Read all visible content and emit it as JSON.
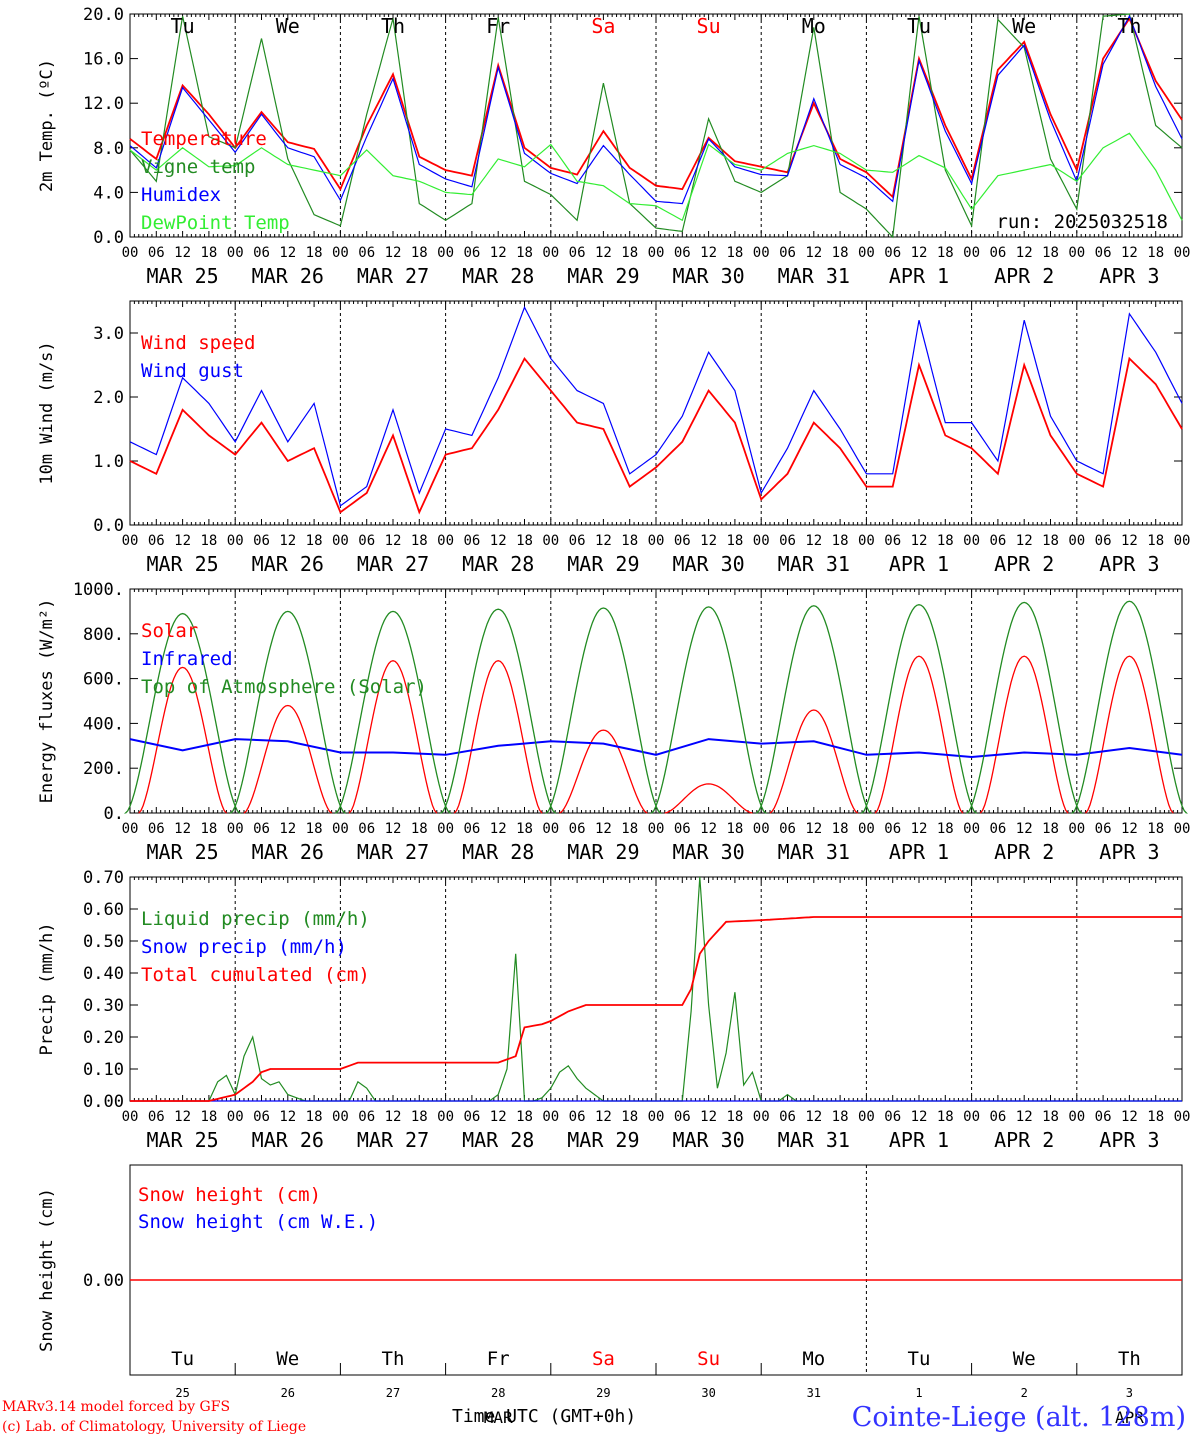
{
  "chart_data": [
    {
      "type": "line",
      "ylabel": "2m Temp. (ºC)",
      "ylim": [
        0,
        20
      ],
      "yticks": [
        "0.0",
        "4.0",
        "8.0",
        "12.0",
        "16.0",
        "20.0"
      ],
      "weekday_labels": [
        "Tu",
        "We",
        "Th",
        "Fr",
        "Sa",
        "Su",
        "Mo",
        "Tu",
        "We",
        "Th"
      ],
      "run_label": "run: 2025032518",
      "series": [
        {
          "name": "Temperature",
          "color": "#ff0000",
          "x": [
            0,
            6,
            12,
            18,
            24,
            30,
            36,
            42,
            48,
            54,
            60,
            66,
            72,
            78,
            84,
            90,
            96,
            102,
            108,
            114,
            120,
            126,
            132,
            138,
            144,
            150,
            156,
            162,
            168,
            174,
            180,
            186,
            192,
            198,
            204,
            210,
            216,
            222,
            228,
            234,
            240
          ],
          "values": [
            8.8,
            7.0,
            13.6,
            11.0,
            8.0,
            11.2,
            8.5,
            7.9,
            4.3,
            10.0,
            14.6,
            7.2,
            6.0,
            5.5,
            15.4,
            8.0,
            6.2,
            5.6,
            9.5,
            6.2,
            4.6,
            4.3,
            8.9,
            6.8,
            6.3,
            5.8,
            12.0,
            7.0,
            5.8,
            3.6,
            16.0,
            10.0,
            5.2,
            15.0,
            17.5,
            11.0,
            6.0,
            16.0,
            19.6,
            14.0,
            10.5
          ]
        },
        {
          "name": "Vigne temp",
          "color": "#228b22",
          "x": [
            0,
            6,
            12,
            18,
            24,
            30,
            36,
            42,
            48,
            54,
            60,
            66,
            72,
            78,
            84,
            90,
            96,
            102,
            108,
            114,
            120,
            126,
            132,
            138,
            144,
            150,
            156,
            162,
            168,
            174,
            180,
            186,
            192,
            198,
            204,
            210,
            216,
            222,
            228,
            234,
            240
          ],
          "values": [
            7.8,
            5.0,
            19.8,
            9.0,
            8.0,
            17.8,
            7.0,
            2.0,
            1.0,
            11.0,
            19.6,
            3.0,
            1.5,
            3.0,
            19.7,
            5.0,
            3.8,
            1.5,
            13.8,
            3.0,
            0.8,
            0.5,
            10.6,
            5.0,
            4.0,
            5.5,
            18.8,
            4.0,
            2.5,
            0.0,
            19.8,
            6.0,
            1.0,
            19.5,
            17.0,
            7.0,
            2.5,
            19.8,
            20.0,
            10.0,
            8.0
          ]
        },
        {
          "name": "Humidex",
          "color": "#0000ff",
          "x": [
            0,
            6,
            12,
            18,
            24,
            30,
            36,
            42,
            48,
            54,
            60,
            66,
            72,
            78,
            84,
            90,
            96,
            102,
            108,
            114,
            120,
            126,
            132,
            138,
            144,
            150,
            156,
            162,
            168,
            174,
            180,
            186,
            192,
            198,
            204,
            210,
            216,
            222,
            228,
            234,
            240
          ],
          "values": [
            8.2,
            6.2,
            13.4,
            10.5,
            7.6,
            11.0,
            8.0,
            7.2,
            3.3,
            9.0,
            14.2,
            6.5,
            5.2,
            4.5,
            15.2,
            7.5,
            5.7,
            4.8,
            8.2,
            5.6,
            3.2,
            3.0,
            8.8,
            6.3,
            5.6,
            5.5,
            12.4,
            6.5,
            5.3,
            3.2,
            15.8,
            9.5,
            4.8,
            14.5,
            17.2,
            10.5,
            5.0,
            15.5,
            19.8,
            13.5,
            8.8
          ]
        },
        {
          "name": "DewPoint Temp",
          "color": "#33ee33",
          "x": [
            0,
            6,
            12,
            18,
            24,
            30,
            36,
            42,
            48,
            54,
            60,
            66,
            72,
            78,
            84,
            90,
            96,
            102,
            108,
            114,
            120,
            126,
            132,
            138,
            144,
            150,
            156,
            162,
            168,
            174,
            180,
            186,
            192,
            198,
            204,
            210,
            216,
            222,
            228,
            234,
            240
          ],
          "values": [
            7.8,
            6.0,
            8.0,
            6.3,
            6.4,
            8.0,
            6.5,
            6.0,
            5.5,
            7.8,
            5.5,
            5.0,
            4.0,
            3.8,
            7.0,
            6.3,
            8.3,
            5.0,
            4.6,
            3.0,
            2.8,
            1.5,
            8.3,
            6.5,
            6.0,
            7.5,
            8.2,
            7.5,
            6.0,
            5.8,
            7.3,
            6.2,
            2.5,
            5.5,
            6.0,
            6.5,
            5.0,
            8.0,
            9.3,
            6.0,
            1.5
          ]
        }
      ]
    },
    {
      "type": "line",
      "ylabel": "10m Wind (m/s)",
      "ylim": [
        0,
        3.5
      ],
      "yticks": [
        "0.0",
        "1.0",
        "2.0",
        "3.0"
      ],
      "series": [
        {
          "name": "Wind speed",
          "color": "#ff0000",
          "x": [
            0,
            6,
            12,
            18,
            24,
            30,
            36,
            42,
            48,
            54,
            60,
            66,
            72,
            78,
            84,
            90,
            96,
            102,
            108,
            114,
            120,
            126,
            132,
            138,
            144,
            150,
            156,
            162,
            168,
            174,
            180,
            186,
            192,
            198,
            204,
            210,
            216,
            222,
            228,
            234,
            240
          ],
          "values": [
            1.0,
            0.8,
            1.8,
            1.4,
            1.1,
            1.6,
            1.0,
            1.2,
            0.2,
            0.5,
            1.4,
            0.2,
            1.1,
            1.2,
            1.8,
            2.6,
            2.1,
            1.6,
            1.5,
            0.6,
            0.9,
            1.3,
            2.1,
            1.6,
            0.4,
            0.8,
            1.6,
            1.2,
            0.6,
            0.6,
            2.5,
            1.4,
            1.2,
            0.8,
            2.5,
            1.4,
            0.8,
            0.6,
            2.6,
            2.2,
            1.5
          ]
        },
        {
          "name": "Wind gust",
          "color": "#0000ff",
          "x": [
            0,
            6,
            12,
            18,
            24,
            30,
            36,
            42,
            48,
            54,
            60,
            66,
            72,
            78,
            84,
            90,
            96,
            102,
            108,
            114,
            120,
            126,
            132,
            138,
            144,
            150,
            156,
            162,
            168,
            174,
            180,
            186,
            192,
            198,
            204,
            210,
            216,
            222,
            228,
            234,
            240
          ],
          "values": [
            1.3,
            1.1,
            2.3,
            1.9,
            1.3,
            2.1,
            1.3,
            1.9,
            0.3,
            0.6,
            1.8,
            0.5,
            1.5,
            1.4,
            2.3,
            3.4,
            2.6,
            2.1,
            1.9,
            0.8,
            1.1,
            1.7,
            2.7,
            2.1,
            0.5,
            1.2,
            2.1,
            1.5,
            0.8,
            0.8,
            3.2,
            1.6,
            1.6,
            1.0,
            3.2,
            1.7,
            1.0,
            0.8,
            3.3,
            2.7,
            1.9
          ]
        }
      ]
    },
    {
      "type": "line",
      "ylabel": "Energy fluxes (W/m²)",
      "ylim": [
        0,
        1000
      ],
      "yticks": [
        "0.",
        "200.",
        "400.",
        "600.",
        "800.",
        "1000."
      ],
      "series": [
        {
          "name": "Solar",
          "color": "#ff0000",
          "peaks": [
            650,
            480,
            680,
            680,
            370,
            130,
            460,
            700,
            700,
            700
          ]
        },
        {
          "name": "Infrared",
          "color": "#0000ff",
          "x": [
            0,
            12,
            24,
            36,
            48,
            60,
            72,
            84,
            96,
            108,
            120,
            132,
            144,
            156,
            168,
            180,
            192,
            204,
            216,
            228,
            240
          ],
          "values": [
            330,
            280,
            330,
            320,
            270,
            270,
            260,
            300,
            320,
            310,
            260,
            330,
            310,
            320,
            260,
            270,
            250,
            270,
            260,
            290,
            260
          ]
        },
        {
          "name": "Top of Atmosphere (Solar)",
          "color": "#228b22",
          "peaks": [
            890,
            900,
            900,
            910,
            915,
            920,
            925,
            930,
            940,
            945
          ]
        }
      ]
    },
    {
      "type": "line",
      "ylabel": "Precip (mm/h)",
      "ylim": [
        0,
        0.7
      ],
      "yticks": [
        "0.00",
        "0.10",
        "0.20",
        "0.30",
        "0.40",
        "0.50",
        "0.60",
        "0.70"
      ],
      "series": [
        {
          "name": "Liquid precip (mm/h)",
          "color": "#228b22",
          "x": [
            0,
            18,
            20,
            22,
            24,
            26,
            28,
            30,
            32,
            34,
            36,
            38,
            40,
            42,
            44,
            46,
            48,
            50,
            52,
            54,
            56,
            58,
            60,
            62,
            64,
            66,
            68,
            70,
            72,
            74,
            76,
            78,
            80,
            82,
            84,
            86,
            88,
            90,
            92,
            94,
            96,
            98,
            100,
            102,
            104,
            106,
            108,
            110,
            112,
            114,
            116,
            118,
            120,
            122,
            124,
            126,
            128,
            130,
            132,
            134,
            136,
            138,
            140,
            142,
            144,
            146,
            148,
            150,
            152,
            154,
            156,
            240
          ],
          "values": [
            0,
            0,
            0.06,
            0.08,
            0.02,
            0.14,
            0.2,
            0.07,
            0.05,
            0.06,
            0.02,
            0.01,
            0,
            0,
            0,
            0,
            0,
            0,
            0.06,
            0.04,
            0,
            0,
            0,
            0,
            0,
            0,
            0,
            0,
            0,
            0,
            0,
            0,
            0,
            0,
            0.02,
            0.1,
            0.46,
            0,
            0,
            0.01,
            0.04,
            0.09,
            0.11,
            0.07,
            0.04,
            0.02,
            0,
            0,
            0,
            0,
            0,
            0,
            0,
            0,
            0,
            0,
            0.28,
            0.7,
            0.3,
            0.04,
            0.15,
            0.34,
            0.05,
            0.09,
            0,
            0,
            0,
            0.02,
            0,
            0,
            0,
            0
          ]
        },
        {
          "name": "Snow precip (mm/h)",
          "color": "#0000ff",
          "x": [
            0,
            240
          ],
          "values": [
            0,
            0
          ]
        },
        {
          "name": "Total cumulated (cm)",
          "color": "#ff0000",
          "x": [
            0,
            18,
            24,
            28,
            30,
            32,
            36,
            48,
            52,
            54,
            84,
            88,
            90,
            94,
            96,
            100,
            104,
            108,
            112,
            120,
            126,
            128,
            130,
            132,
            134,
            136,
            144,
            156,
            240
          ],
          "values": [
            0,
            0,
            0.02,
            0.06,
            0.09,
            0.1,
            0.1,
            0.1,
            0.12,
            0.12,
            0.12,
            0.14,
            0.23,
            0.24,
            0.25,
            0.28,
            0.3,
            0.3,
            0.3,
            0.3,
            0.3,
            0.35,
            0.46,
            0.5,
            0.53,
            0.56,
            0.565,
            0.575,
            0.575
          ]
        }
      ]
    },
    {
      "type": "line",
      "ylabel": "Snow height (cm)",
      "yticks": [
        "0.00"
      ],
      "series": [
        {
          "name": "Snow height (cm)",
          "color": "#ff0000",
          "x": [
            0,
            240
          ],
          "values": [
            0,
            0
          ]
        },
        {
          "name": "Snow height (cm W.E.)",
          "color": "#0000ff",
          "x": [
            0,
            240
          ],
          "values": [
            0,
            0
          ]
        }
      ]
    }
  ],
  "shared_x": {
    "hour_ticks": [
      "00",
      "06",
      "12",
      "18"
    ],
    "last_tick": "00",
    "dates": [
      "MAR 25",
      "MAR 26",
      "MAR 27",
      "MAR 28",
      "MAR 29",
      "MAR 30",
      "MAR 31",
      "APR  1",
      "APR  2",
      "APR  3"
    ],
    "day_numbers": [
      "25",
      "26",
      "27",
      "28",
      "29",
      "30",
      "31",
      "1",
      "2",
      "3"
    ],
    "month_labels": [
      "MAR",
      "APR"
    ],
    "weekday_colors": [
      "#000000",
      "#000000",
      "#000000",
      "#000000",
      "#ff0000",
      "#ff0000",
      "#000000",
      "#000000",
      "#000000",
      "#000000"
    ]
  },
  "footer": {
    "model_line": "MARv3.14 model forced by GFS",
    "lab_line": "(c) Lab. of Climatology, University of Liege",
    "xaxis_title": "Time UTC (GMT+0h)",
    "station": "Cointe-Liege (alt. 128m)"
  }
}
